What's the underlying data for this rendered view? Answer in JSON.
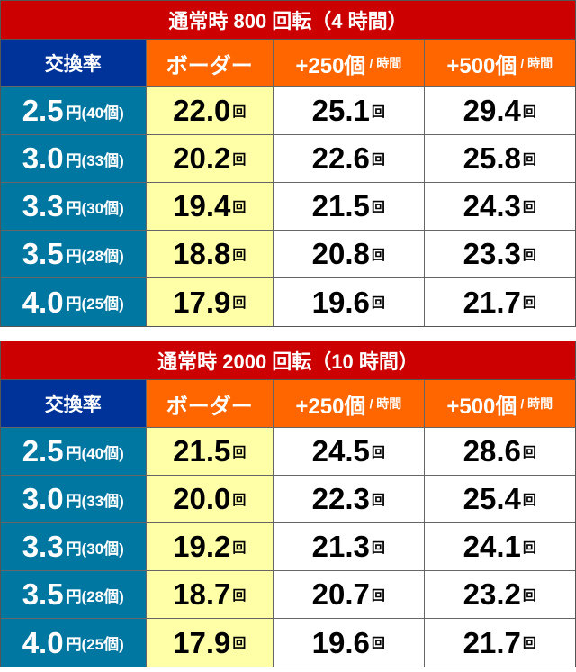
{
  "tables": [
    {
      "title": "通常時 800 回転（4 時間）",
      "headers": {
        "rate": "交換率",
        "border": "ボーダー",
        "plus250": "+250個",
        "plus500": "+500個",
        "per_hour": "/ 時間"
      },
      "rows": [
        {
          "rate": "2.5",
          "rate_unit": "円(40個)",
          "border": "22.0",
          "plus250": "25.1",
          "plus500": "29.4"
        },
        {
          "rate": "3.0",
          "rate_unit": "円(33個)",
          "border": "20.2",
          "plus250": "22.6",
          "plus500": "25.8"
        },
        {
          "rate": "3.3",
          "rate_unit": "円(30個)",
          "border": "19.4",
          "plus250": "21.5",
          "plus500": "24.3"
        },
        {
          "rate": "3.5",
          "rate_unit": "円(28個)",
          "border": "18.8",
          "plus250": "20.8",
          "plus500": "23.3"
        },
        {
          "rate": "4.0",
          "rate_unit": "円(25個)",
          "border": "17.9",
          "plus250": "19.6",
          "plus500": "21.7"
        }
      ]
    },
    {
      "title": "通常時 2000 回転（10 時間）",
      "headers": {
        "rate": "交換率",
        "border": "ボーダー",
        "plus250": "+250個",
        "plus500": "+500個",
        "per_hour": "/ 時間"
      },
      "rows": [
        {
          "rate": "2.5",
          "rate_unit": "円(40個)",
          "border": "21.5",
          "plus250": "24.5",
          "plus500": "28.6"
        },
        {
          "rate": "3.0",
          "rate_unit": "円(33個)",
          "border": "20.0",
          "plus250": "22.3",
          "plus500": "25.4"
        },
        {
          "rate": "3.3",
          "rate_unit": "円(30個)",
          "border": "19.2",
          "plus250": "21.3",
          "plus500": "24.1"
        },
        {
          "rate": "3.5",
          "rate_unit": "円(28個)",
          "border": "18.7",
          "plus250": "20.7",
          "plus500": "23.2"
        },
        {
          "rate": "4.0",
          "rate_unit": "円(25個)",
          "border": "17.9",
          "plus250": "19.6",
          "plus500": "21.7"
        }
      ]
    }
  ],
  "spin_unit": "回",
  "colors": {
    "title": "#cc0000",
    "rate_header": "#003399",
    "header": "#ff6600",
    "rate_cell": "#0077a0",
    "border_cell": "#ffffa8"
  }
}
